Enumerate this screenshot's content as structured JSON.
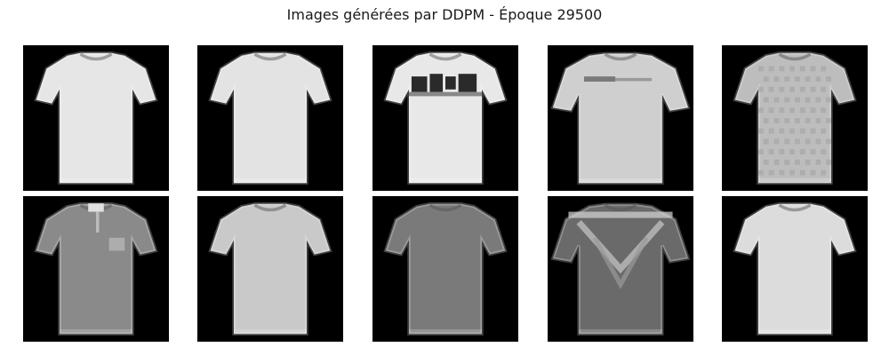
{
  "figure": {
    "title": "Images générées par DDPM - Époque 29500"
  },
  "grid": {
    "rows": 2,
    "cols": 5,
    "background_color": "#000000",
    "samples": [
      {
        "subject": "t-shirt",
        "shade": "#e6e6e6",
        "sleeve": "short",
        "pattern": "none"
      },
      {
        "subject": "t-shirt",
        "shade": "#e3e3e3",
        "sleeve": "short",
        "pattern": "none"
      },
      {
        "subject": "t-shirt",
        "shade": "#e8e8e8",
        "sleeve": "short",
        "pattern": "graphic-print"
      },
      {
        "subject": "t-shirt",
        "shade": "#cfcfcf",
        "sleeve": "wide",
        "pattern": "stripe"
      },
      {
        "subject": "t-shirt",
        "shade": "#bdbdbd",
        "sleeve": "short",
        "pattern": "textured"
      },
      {
        "subject": "t-shirt",
        "shade": "#8a8a8a",
        "sleeve": "short",
        "pattern": "collar-pocket"
      },
      {
        "subject": "t-shirt",
        "shade": "#c9c9c9",
        "sleeve": "short",
        "pattern": "none"
      },
      {
        "subject": "t-shirt",
        "shade": "#7a7a7a",
        "sleeve": "short",
        "pattern": "none"
      },
      {
        "subject": "t-shirt",
        "shade": "#6a6a6a",
        "sleeve": "wide",
        "pattern": "v-graphic"
      },
      {
        "subject": "t-shirt",
        "shade": "#dcdcdc",
        "sleeve": "short",
        "pattern": "none"
      }
    ]
  }
}
